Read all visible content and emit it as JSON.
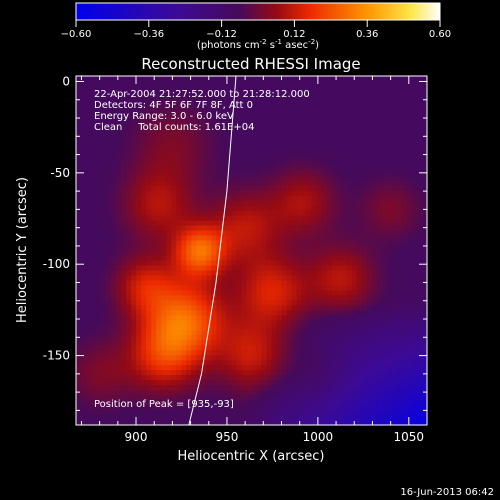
{
  "chart_data": {
    "type": "heatmap",
    "title": "Reconstructed RHESSI Image",
    "xlabel": "Heliocentric X (arcsec)",
    "ylabel": "Heliocentric Y (arcsec)",
    "xlim": [
      867,
      1060
    ],
    "ylim": [
      -188,
      3
    ],
    "xticks": [
      900,
      950,
      1000,
      1050
    ],
    "yticks": [
      0,
      -50,
      -100,
      -150
    ],
    "colorbar": {
      "range": [
        -0.6,
        0.6
      ],
      "ticks": [
        -0.6,
        -0.36,
        -0.12,
        0.12,
        0.36,
        0.6
      ],
      "tick_labels": [
        "−0.60",
        "−0.36",
        "−0.12",
        "0.12",
        "0.36",
        "0.60"
      ],
      "unit_base": "(photons cm",
      "unit_exp1": "-2",
      "unit_mid": " s",
      "unit_exp2": "-1",
      "unit_mid2": " asec",
      "unit_exp3": "-2",
      "unit_end": ")"
    },
    "annotations": [
      "22-Apr-2004 21:27:52.000 to 21:28:12.000",
      "Detectors: 4F 5F 6F 7F 8F, Att 0",
      "Energy Range: 3.0 - 6.0 keV",
      "Clean     Total counts: 1.61E+04"
    ],
    "peak_label": "Position of Peak = [935,-93]",
    "peak": [
      935,
      -93
    ],
    "limb_curve": [
      [
        955,
        3
      ],
      [
        950,
        -60
      ],
      [
        944,
        -110
      ],
      [
        936,
        -160
      ],
      [
        929,
        -188
      ]
    ],
    "sources": [
      {
        "x": 935,
        "y": -93,
        "sigma": 10,
        "amp": 0.34
      },
      {
        "x": 928,
        "y": -130,
        "sigma": 15,
        "amp": 0.32
      },
      {
        "x": 915,
        "y": -150,
        "sigma": 14,
        "amp": 0.24
      },
      {
        "x": 905,
        "y": -112,
        "sigma": 12,
        "amp": 0.2
      },
      {
        "x": 912,
        "y": -68,
        "sigma": 14,
        "amp": 0.17
      },
      {
        "x": 960,
        "y": -80,
        "sigma": 14,
        "amp": 0.18
      },
      {
        "x": 975,
        "y": -115,
        "sigma": 14,
        "amp": 0.22
      },
      {
        "x": 965,
        "y": -150,
        "sigma": 14,
        "amp": 0.2
      },
      {
        "x": 992,
        "y": -66,
        "sigma": 13,
        "amp": 0.16
      },
      {
        "x": 1013,
        "y": -108,
        "sigma": 13,
        "amp": 0.18
      },
      {
        "x": 1040,
        "y": -70,
        "sigma": 12,
        "amp": 0.1
      },
      {
        "x": 920,
        "y": -35,
        "sigma": 16,
        "amp": 0.1
      },
      {
        "x": 880,
        "y": -160,
        "sigma": 13,
        "amp": 0.1
      },
      {
        "x": 1000,
        "y": -160,
        "sigma": 12,
        "amp": 0.08
      }
    ],
    "background": -0.08
  },
  "footer": {
    "date": "16-Jun-2013 06:42"
  }
}
